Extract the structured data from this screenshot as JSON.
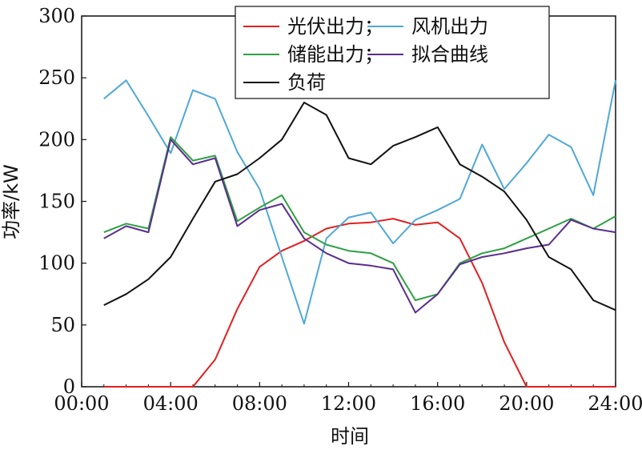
{
  "chart_data": {
    "type": "line",
    "xlabel": "时间",
    "ylabel": "功率/kW",
    "xlim": [
      0,
      24
    ],
    "ylim": [
      0,
      300
    ],
    "x_ticks": [
      0,
      4,
      8,
      12,
      16,
      20,
      24
    ],
    "x_tick_labels": [
      "00:00",
      "04:00",
      "08:00",
      "12:00",
      "16:00",
      "20:00",
      "24:00"
    ],
    "y_ticks": [
      0,
      50,
      100,
      150,
      200,
      250,
      300
    ],
    "y_tick_labels": [
      "0",
      "50",
      "100",
      "150",
      "200",
      "250",
      "300"
    ],
    "grid": false,
    "legend_placement": "top-right",
    "x": [
      1,
      2,
      3,
      4,
      5,
      6,
      7,
      8,
      9,
      10,
      11,
      12,
      13,
      14,
      15,
      16,
      17,
      18,
      19,
      20,
      21,
      22,
      23,
      24
    ],
    "series": [
      {
        "name": "光伏出力；",
        "color": "#e02020",
        "values": [
          0,
          0,
          0,
          0,
          0,
          22,
          63,
          97,
          110,
          118,
          128,
          132,
          133,
          136,
          131,
          133,
          120,
          84,
          36,
          0,
          0,
          0,
          0,
          0
        ]
      },
      {
        "name": "风机出力",
        "color": "#4fa8d8",
        "values": [
          233,
          248,
          219,
          189,
          240,
          233,
          190,
          160,
          105,
          51,
          120,
          137,
          141,
          116,
          135,
          143,
          152,
          196,
          160,
          181,
          204,
          194,
          155,
          248
        ]
      },
      {
        "name": "储能出力；",
        "color": "#2ea043",
        "values": [
          125,
          132,
          128,
          202,
          183,
          187,
          134,
          145,
          155,
          125,
          115,
          110,
          108,
          100,
          70,
          75,
          100,
          108,
          112,
          120,
          128,
          136,
          128,
          138
        ]
      },
      {
        "name": "拟合曲线",
        "color": "#5a2d8c",
        "values": [
          120,
          130,
          125,
          200,
          180,
          185,
          130,
          143,
          148,
          120,
          108,
          100,
          98,
          95,
          60,
          75,
          99,
          105,
          108,
          112,
          115,
          135,
          128,
          125
        ]
      },
      {
        "name": "负荷",
        "color": "#111111",
        "values": [
          66,
          75,
          87,
          105,
          136,
          166,
          172,
          185,
          200,
          230,
          220,
          185,
          180,
          195,
          202,
          210,
          180,
          170,
          158,
          135,
          105,
          95,
          70,
          62
        ]
      }
    ]
  }
}
